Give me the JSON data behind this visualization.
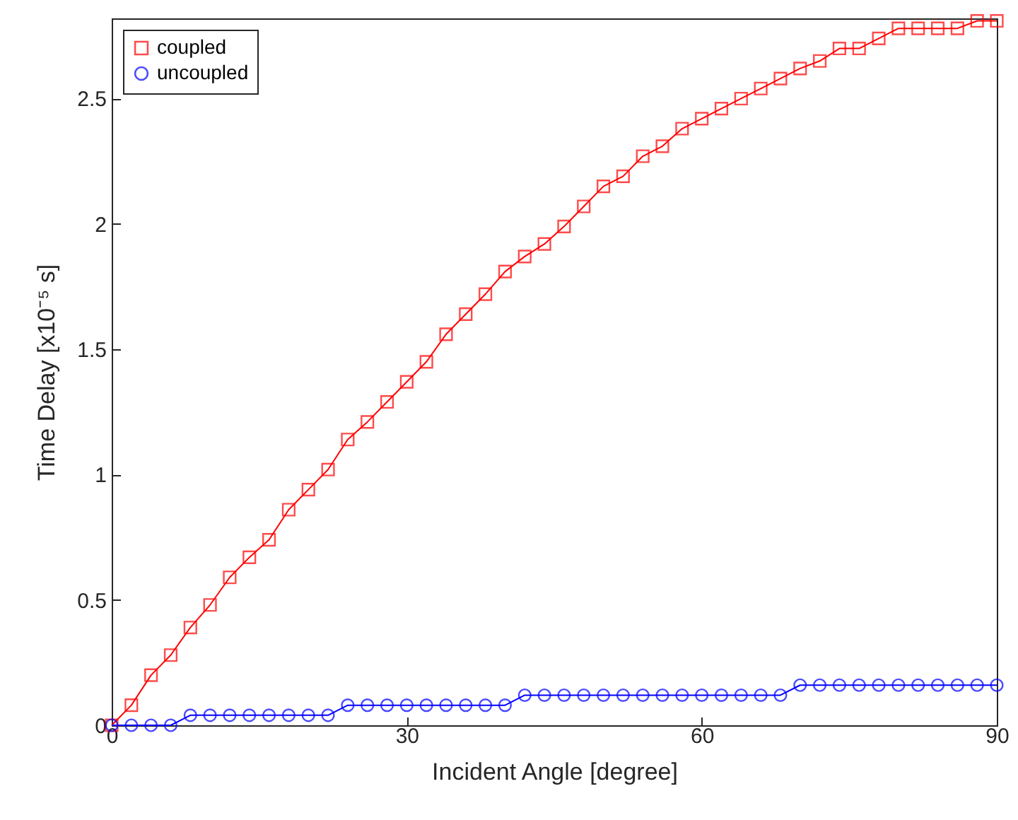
{
  "chart_data": {
    "type": "line",
    "xlabel": "Incident Angle [degree]",
    "ylabel": "Time Delay [x10⁻⁵ s]",
    "x": [
      0,
      2,
      4,
      6,
      8,
      10,
      12,
      14,
      16,
      18,
      20,
      22,
      24,
      26,
      28,
      30,
      32,
      34,
      36,
      38,
      40,
      42,
      44,
      46,
      48,
      50,
      52,
      54,
      56,
      58,
      60,
      62,
      64,
      66,
      68,
      70,
      72,
      74,
      76,
      78,
      80,
      82,
      84,
      86,
      88,
      90
    ],
    "series": [
      {
        "name": "coupled",
        "color": "#ff0000",
        "marker": "square",
        "values": [
          0,
          0.08,
          0.2,
          0.28,
          0.39,
          0.48,
          0.59,
          0.67,
          0.74,
          0.86,
          0.94,
          1.02,
          1.14,
          1.21,
          1.29,
          1.37,
          1.45,
          1.56,
          1.64,
          1.72,
          1.81,
          1.87,
          1.92,
          1.99,
          2.07,
          2.15,
          2.19,
          2.27,
          2.31,
          2.38,
          2.42,
          2.46,
          2.5,
          2.54,
          2.58,
          2.62,
          2.65,
          2.7,
          2.7,
          2.74,
          2.78,
          2.78,
          2.78,
          2.78,
          2.81,
          2.81
        ]
      },
      {
        "name": "uncoupled",
        "color": "#0000ff",
        "marker": "circle",
        "values": [
          0,
          0,
          0,
          0,
          0.04,
          0.04,
          0.04,
          0.04,
          0.04,
          0.04,
          0.04,
          0.04,
          0.08,
          0.08,
          0.08,
          0.08,
          0.08,
          0.08,
          0.08,
          0.08,
          0.08,
          0.12,
          0.12,
          0.12,
          0.12,
          0.12,
          0.12,
          0.12,
          0.12,
          0.12,
          0.12,
          0.12,
          0.12,
          0.12,
          0.12,
          0.16,
          0.16,
          0.16,
          0.16,
          0.16,
          0.16,
          0.16,
          0.16,
          0.16,
          0.16,
          0.16
        ]
      }
    ],
    "xlim": [
      0,
      90
    ],
    "xticks": [
      0,
      30,
      60,
      90
    ],
    "ylim": [
      0,
      2.82
    ],
    "yticks": [
      0,
      0.5,
      1,
      1.5,
      2,
      2.5
    ],
    "grid": false,
    "legend": "top left",
    "line_style": "solid"
  }
}
